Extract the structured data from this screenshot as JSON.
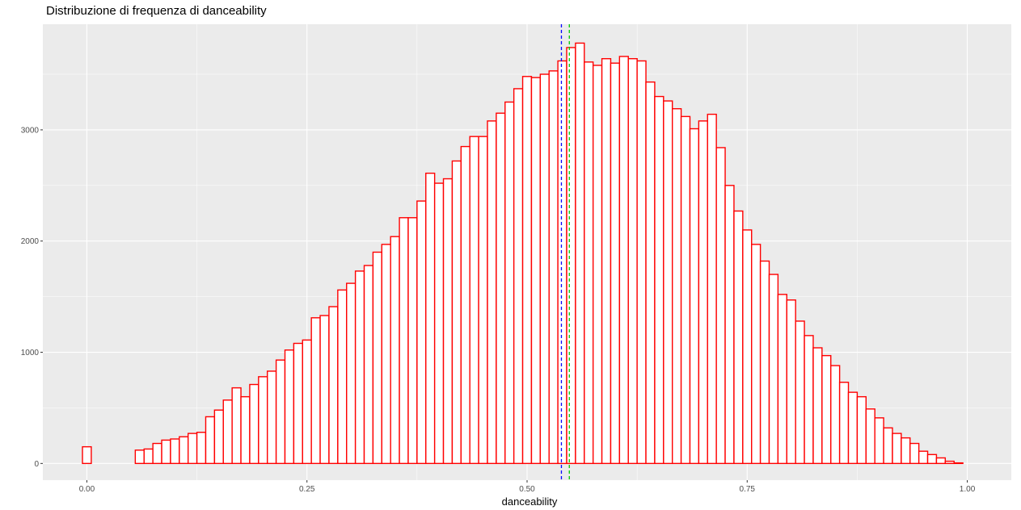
{
  "chart_data": {
    "type": "histogram",
    "title": "Distribuzione di frequenza di danceability",
    "xlabel": "danceability",
    "ylabel": "",
    "xlim": [
      -0.05,
      1.05
    ],
    "ylim": [
      -150,
      3950
    ],
    "x_ticks": [
      0.0,
      0.25,
      0.5,
      0.75,
      1.0
    ],
    "x_tick_labels": [
      "0.00",
      "0.25",
      "0.50",
      "0.75",
      "1.00"
    ],
    "y_ticks": [
      0,
      1000,
      2000,
      3000
    ],
    "y_tick_labels": [
      "0",
      "1000",
      "2000",
      "3000"
    ],
    "grid": true,
    "bin_width": 0.01,
    "bins_start": -0.005,
    "counts": [
      150,
      0,
      0,
      0,
      0,
      0,
      120,
      130,
      180,
      210,
      220,
      240,
      270,
      280,
      420,
      480,
      570,
      680,
      600,
      710,
      780,
      830,
      930,
      1020,
      1080,
      1110,
      1310,
      1330,
      1410,
      1560,
      1620,
      1730,
      1780,
      1900,
      1970,
      2040,
      2210,
      2210,
      2360,
      2610,
      2520,
      2560,
      2720,
      2850,
      2940,
      2940,
      3080,
      3150,
      3250,
      3370,
      3480,
      3470,
      3500,
      3530,
      3620,
      3740,
      3780,
      3610,
      3580,
      3640,
      3600,
      3660,
      3640,
      3620,
      3430,
      3300,
      3260,
      3190,
      3120,
      3010,
      3080,
      3140,
      2840,
      2500,
      2270,
      2100,
      1970,
      1820,
      1700,
      1520,
      1470,
      1280,
      1150,
      1040,
      970,
      880,
      730,
      640,
      600,
      490,
      410,
      320,
      270,
      230,
      180,
      110,
      80,
      50,
      20,
      5
    ],
    "reference_lines": [
      {
        "x": 0.539,
        "color": "#0000ff",
        "linetype": "dashed"
      },
      {
        "x": 0.548,
        "color": "#00cc00",
        "linetype": "dashed"
      }
    ],
    "bar_fill": "#ffffff",
    "bar_outline": "#ff0000",
    "panel_background": "#ebebeb"
  }
}
